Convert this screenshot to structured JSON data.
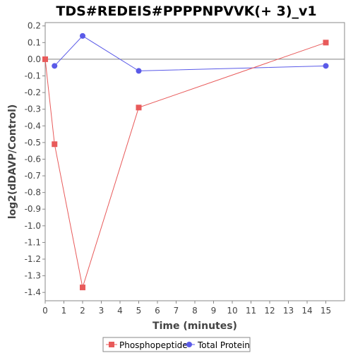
{
  "chart_data": {
    "type": "line",
    "title": "TDS#REDEIS#PPPPNPVVK(+ 3)_v1",
    "xlabel": "Time (minutes)",
    "ylabel": "log2(dDAVP/Control)",
    "xlim": [
      0,
      16
    ],
    "ylim": [
      -1.45,
      0.22
    ],
    "x_ticks": [
      0,
      1,
      2,
      3,
      4,
      5,
      6,
      7,
      8,
      9,
      10,
      11,
      12,
      13,
      14,
      15
    ],
    "y_ticks": [
      0.2,
      0.1,
      0.0,
      -0.1,
      -0.2,
      -0.3,
      -0.4,
      -0.5,
      -0.6,
      -0.7,
      -0.8,
      -0.9,
      -1.0,
      -1.1,
      -1.2,
      -1.3,
      -1.4
    ],
    "y_tick_labels": [
      "0.2",
      "0.1",
      "0.0",
      "-0.1",
      "-0.2",
      "-0.3",
      "-0.4",
      "-0.5",
      "-0.6",
      "-0.7",
      "-0.8",
      "-0.9",
      "-1.0",
      "-1.1",
      "-1.2",
      "-1.3",
      "-1.4"
    ],
    "grid": false,
    "zero_line": true,
    "legend_position": "bottom-center",
    "series": [
      {
        "name": "Phosphopeptide",
        "color": "#e85a5a",
        "marker": "square",
        "x": [
          0,
          0.5,
          2,
          5,
          15
        ],
        "y": [
          0.0,
          -0.51,
          -1.37,
          -0.29,
          0.1
        ]
      },
      {
        "name": "Total Protein",
        "color": "#5a5ae8",
        "marker": "circle",
        "x": [
          0.5,
          2,
          5,
          15
        ],
        "y": [
          -0.04,
          0.14,
          -0.07,
          -0.04
        ]
      }
    ]
  }
}
